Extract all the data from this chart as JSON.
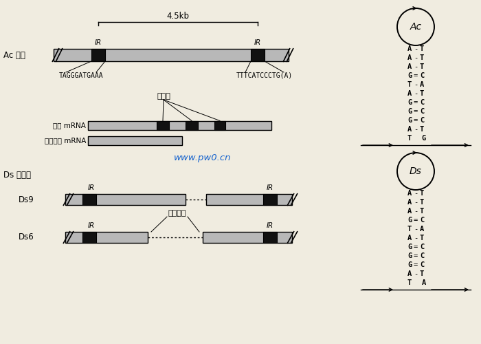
{
  "bg_color": "#f0ece0",
  "ac_label": "Ac 因子",
  "ds_label": "Ds 因子：",
  "ds9_label": "Ds9",
  "ds6_label": "Ds6",
  "ir_label": "IR",
  "size_label": "4.5kb",
  "left_seq": "TAGGGATGAAA",
  "right_seq": "TTTCATCCCTG(A)",
  "intron_label": "内含子",
  "primary_mrna": "初级 mRNA",
  "processed_mrna": "加工后的 mRNA",
  "watermark": "www.pw0.cn",
  "ac_pairs": [
    [
      "A",
      "-",
      "T"
    ],
    [
      "A",
      "-",
      "T"
    ],
    [
      "A",
      "-",
      "T"
    ],
    [
      "G",
      "=",
      "C"
    ],
    [
      "T",
      "-",
      "A"
    ],
    [
      "A",
      "-",
      "T"
    ],
    [
      "G",
      "=",
      "C"
    ],
    [
      "G",
      "=",
      "C"
    ],
    [
      "G",
      "=",
      "C"
    ],
    [
      "A",
      "-",
      "T"
    ]
  ],
  "ds_pairs": [
    [
      "A",
      "-",
      "T"
    ],
    [
      "A",
      "-",
      "T"
    ],
    [
      "A",
      "-",
      "T"
    ],
    [
      "G",
      "=",
      "C"
    ],
    [
      "T",
      "-",
      "A"
    ],
    [
      "A",
      "-",
      "T"
    ],
    [
      "G",
      "=",
      "C"
    ],
    [
      "G",
      "=",
      "C"
    ],
    [
      "G",
      "=",
      "C"
    ],
    [
      "A",
      "-",
      "T"
    ]
  ]
}
